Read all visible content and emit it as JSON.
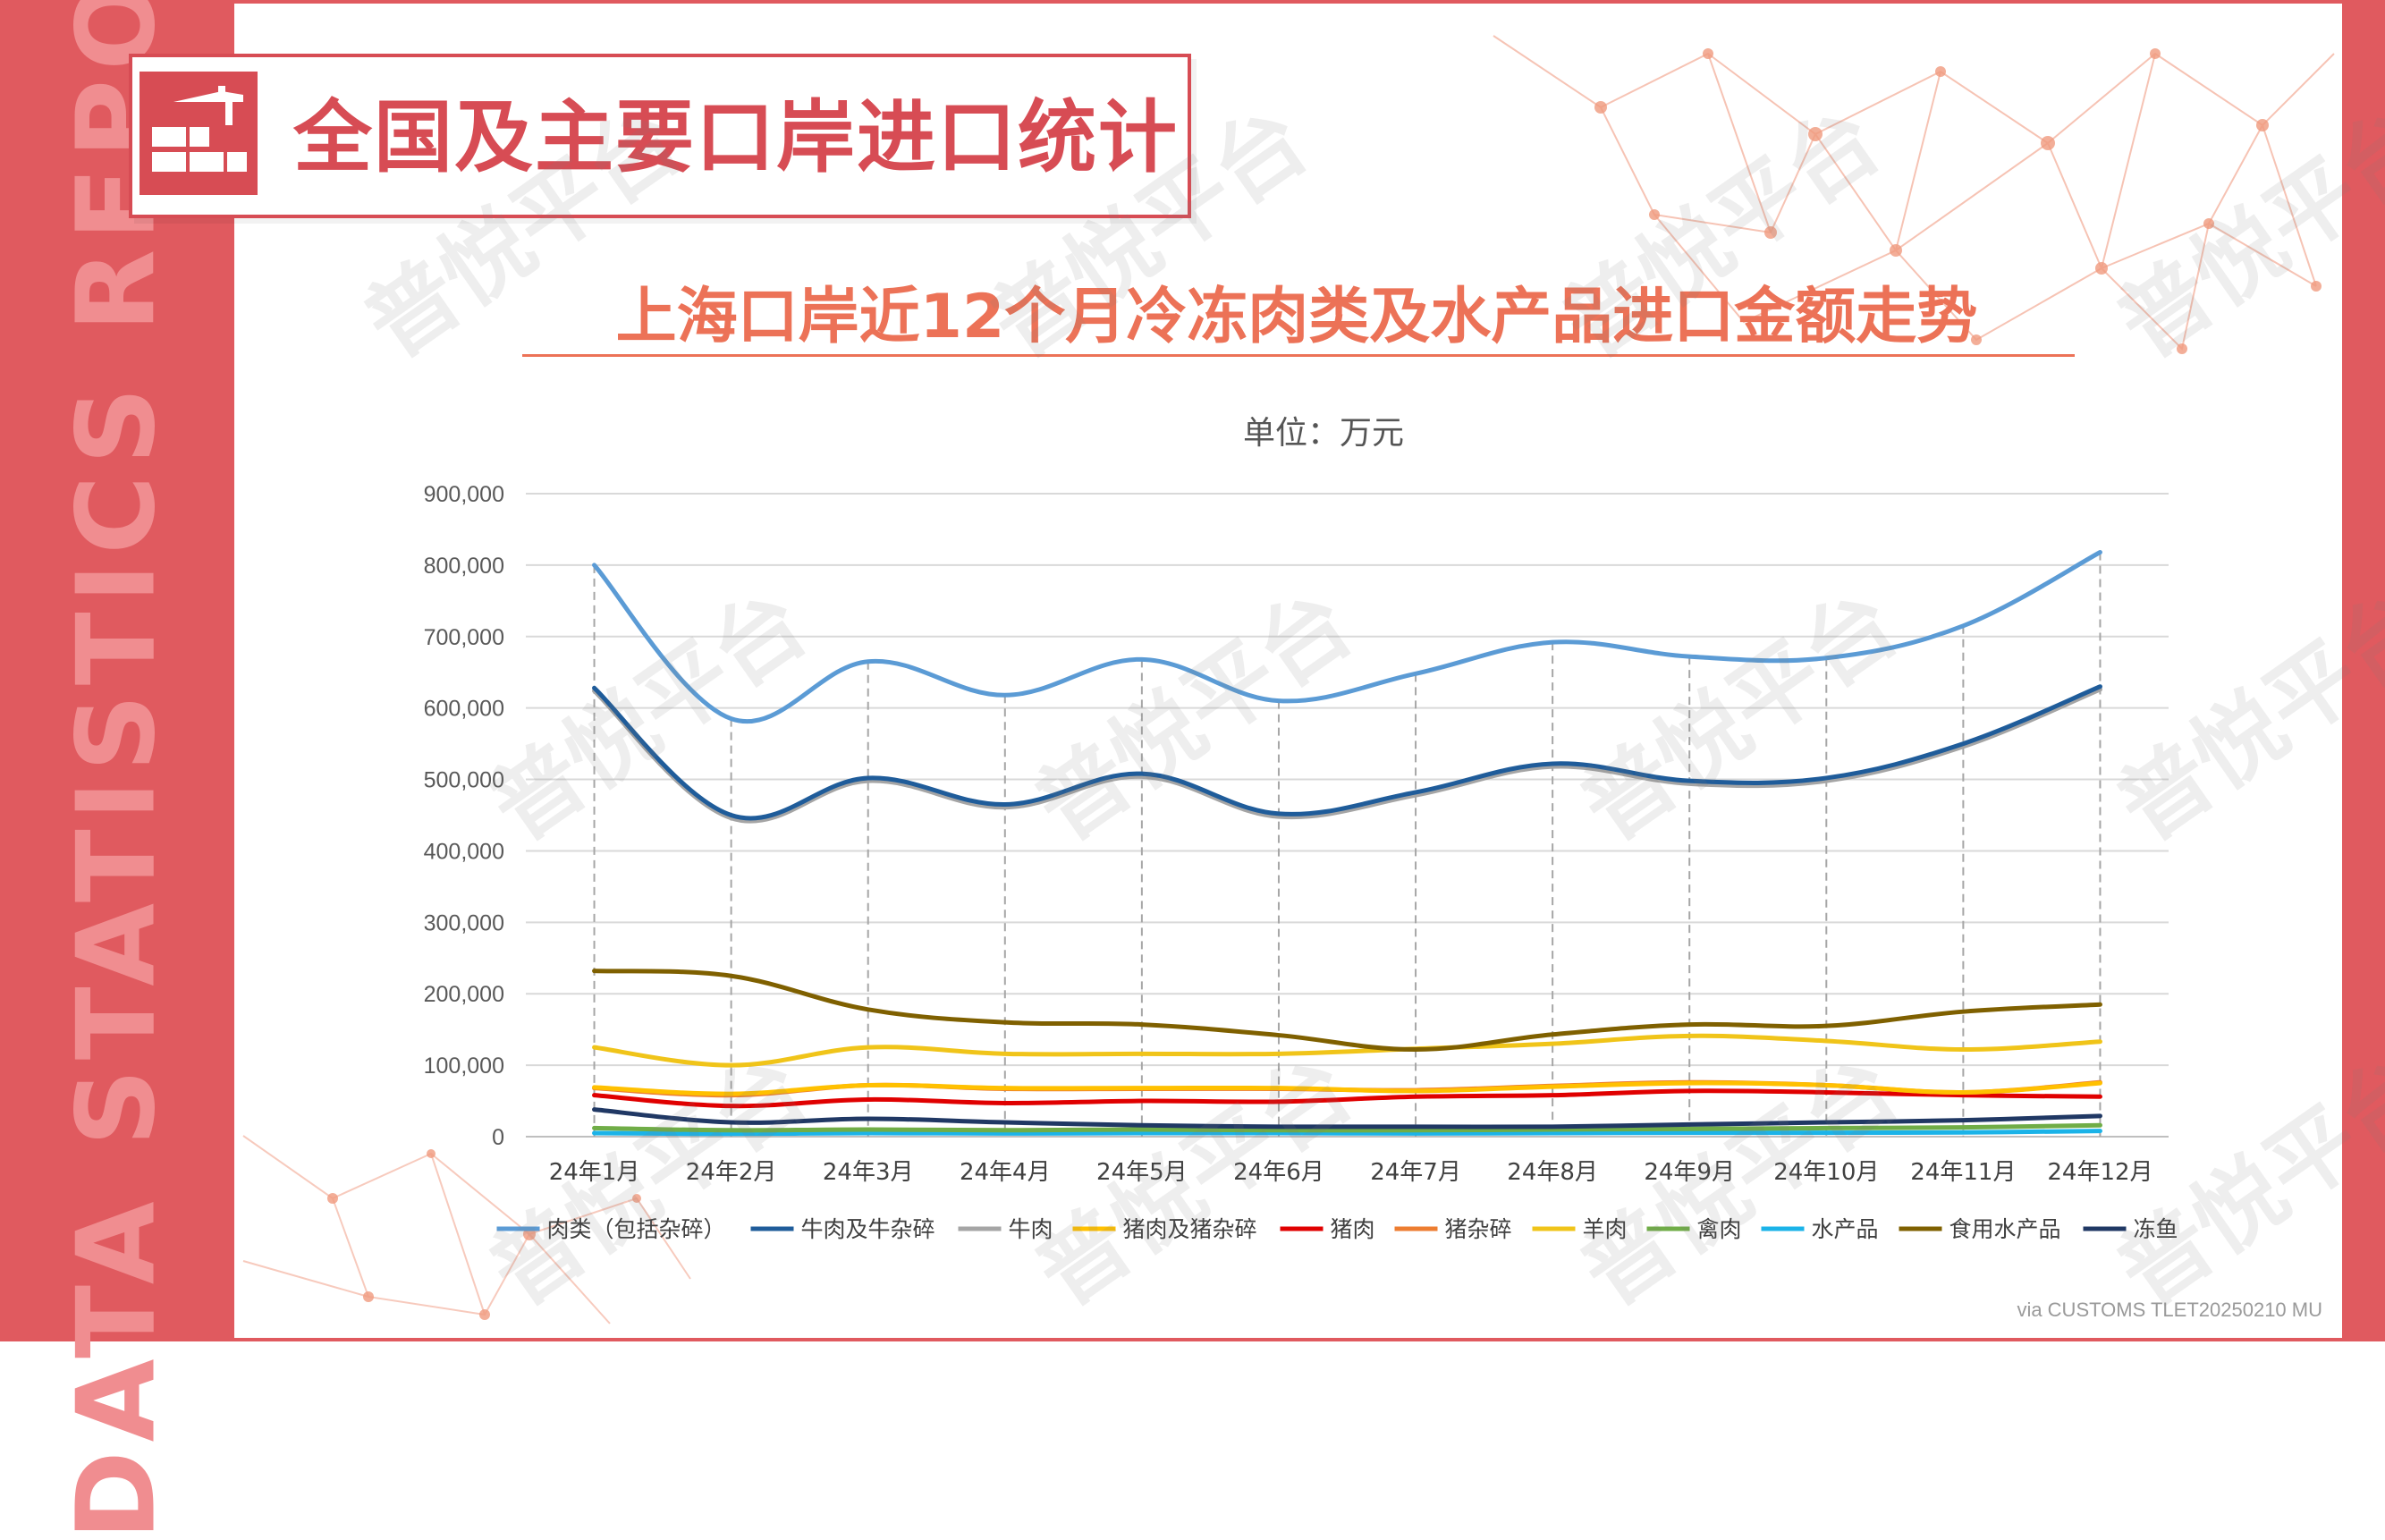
{
  "side_text": "DATA STATISTICS REPORT",
  "header": {
    "title": "全国及主要口岸进口统计"
  },
  "chart_title": "上海口岸近12个月冷冻肉类及水产品进口金额走势",
  "unit_label": "单位：万元",
  "source": "via CUSTOMS TLET20250210 MU",
  "watermark": "普悦平台",
  "colors": {
    "band": "#e05a5f",
    "title": "#d74c54",
    "chart_title": "#ec7257"
  },
  "chart_data": {
    "type": "line",
    "categories": [
      "24年1月",
      "24年2月",
      "24年3月",
      "24年4月",
      "24年5月",
      "24年6月",
      "24年7月",
      "24年8月",
      "24年9月",
      "24年10月",
      "24年11月",
      "24年12月"
    ],
    "ylim": [
      0,
      900000
    ],
    "yticks": [
      0,
      100000,
      200000,
      300000,
      400000,
      500000,
      600000,
      700000,
      800000,
      900000
    ],
    "ytick_labels": [
      "0",
      "100,000",
      "200,000",
      "300,000",
      "400,000",
      "500,000",
      "600,000",
      "700,000",
      "800,000",
      "900,000"
    ],
    "grid": true,
    "legend_position": "bottom",
    "series": [
      {
        "name": "肉类（包括杂碎）",
        "color": "#5b9bd5",
        "values": [
          800000,
          585000,
          665000,
          618000,
          668000,
          610000,
          648000,
          692000,
          672000,
          670000,
          715000,
          818000
        ]
      },
      {
        "name": "牛肉及牛杂碎",
        "color": "#1f5c9a",
        "values": [
          628000,
          450000,
          502000,
          465000,
          508000,
          452000,
          482000,
          522000,
          498000,
          502000,
          550000,
          630000
        ]
      },
      {
        "name": "牛肉",
        "color": "#a5a5a5",
        "values": [
          624000,
          446000,
          498000,
          461000,
          504000,
          448000,
          478000,
          518000,
          494000,
          498000,
          546000,
          626000
        ]
      },
      {
        "name": "猪肉及猪杂碎",
        "color": "#ffc000",
        "values": [
          69000,
          60000,
          72000,
          68000,
          68000,
          68000,
          64000,
          70000,
          75000,
          72000,
          62000,
          75000
        ]
      },
      {
        "name": "猪肉",
        "color": "#e00000",
        "values": [
          58000,
          43000,
          52000,
          47000,
          50000,
          49000,
          56000,
          58000,
          64000,
          62000,
          58000,
          56000
        ]
      },
      {
        "name": "猪杂碎",
        "color": "#ed7d31",
        "values": [
          68000,
          58000,
          72000,
          67000,
          67000,
          67000,
          65000,
          71000,
          76000,
          72000,
          62000,
          76000
        ]
      },
      {
        "name": "羊肉",
        "color": "#f0c419",
        "values": [
          125000,
          100000,
          125000,
          116000,
          116000,
          116000,
          123000,
          130000,
          141000,
          134000,
          122000,
          133000
        ]
      },
      {
        "name": "禽肉",
        "color": "#70ad47",
        "values": [
          12000,
          9000,
          10000,
          9000,
          10000,
          9000,
          9000,
          10000,
          11000,
          12000,
          13000,
          16000
        ]
      },
      {
        "name": "水产品",
        "color": "#1bb3e8",
        "values": [
          5000,
          4000,
          5000,
          4500,
          5000,
          5000,
          4500,
          5000,
          5500,
          5500,
          6000,
          8000
        ]
      },
      {
        "name": "食用水产品",
        "color": "#7f6000",
        "values": [
          232000,
          225000,
          178000,
          160000,
          157000,
          142000,
          122000,
          143000,
          157000,
          155000,
          175000,
          185000
        ]
      },
      {
        "name": "冻鱼",
        "color": "#203864",
        "values": [
          38000,
          20000,
          25000,
          20000,
          16000,
          14000,
          14000,
          14000,
          17000,
          20000,
          23000,
          29000
        ]
      }
    ]
  }
}
